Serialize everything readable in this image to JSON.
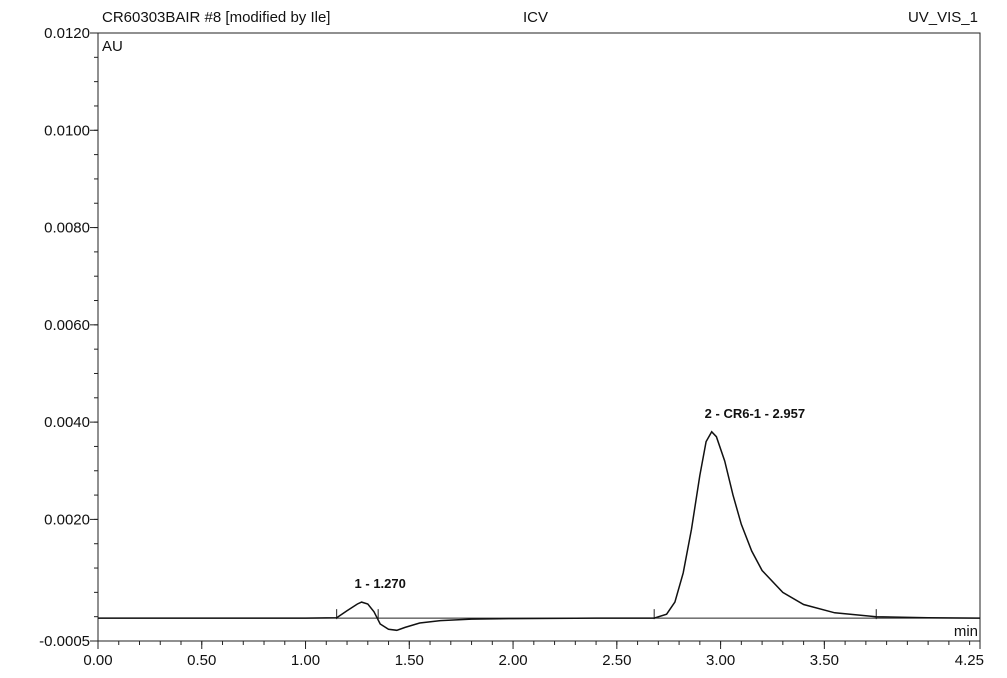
{
  "header": {
    "sample": "CR60303BAIR #8 [modified by Ile]",
    "method": "ICV",
    "channel": "UV_VIS_1"
  },
  "chart_data": {
    "type": "line",
    "title": "CR60303BAIR #8 [modified by Ile]",
    "xlabel": "min",
    "ylabel": "AU",
    "xlim": [
      0.0,
      4.25
    ],
    "ylim": [
      -0.0005,
      0.012
    ],
    "x_ticks": [
      "0.00",
      "0.50",
      "1.00",
      "1.50",
      "2.00",
      "2.50",
      "3.00",
      "3.50",
      "4.25"
    ],
    "y_ticks": [
      "-0.0005",
      "0.0020",
      "0.0040",
      "0.0060",
      "0.0080",
      "0.0100",
      "0.0120"
    ],
    "grid": false,
    "series": [
      {
        "x": [
          0.0,
          1.0,
          1.15,
          1.2,
          1.25,
          1.27,
          1.3,
          1.33,
          1.36,
          1.4,
          1.44,
          1.48,
          1.55,
          1.65,
          1.8,
          2.0,
          2.4,
          2.68,
          2.74,
          2.78,
          2.82,
          2.86,
          2.9,
          2.93,
          2.957,
          2.98,
          3.02,
          3.06,
          3.1,
          3.15,
          3.2,
          3.3,
          3.4,
          3.55,
          3.75,
          4.0,
          4.25
        ],
        "y": [
          -3e-05,
          -3e-05,
          -2e-05,
          0.00012,
          0.00026,
          0.0003,
          0.00026,
          0.0001,
          -0.00015,
          -0.00026,
          -0.00028,
          -0.00022,
          -0.00013,
          -8e-05,
          -5e-05,
          -4e-05,
          -3e-05,
          -3e-05,
          5e-05,
          0.0003,
          0.0009,
          0.0018,
          0.0029,
          0.0036,
          0.0038,
          0.0037,
          0.0032,
          0.0025,
          0.0019,
          0.00135,
          0.00095,
          0.0005,
          0.00025,
          8e-05,
          0.0,
          -2e-05,
          -3e-05
        ]
      }
    ],
    "peaks": [
      {
        "label": "1 - 1.270",
        "x": 1.27,
        "y": 0.0003
      },
      {
        "label": "2 - CR6-1 - 2.957",
        "x": 2.957,
        "y": 0.0038
      }
    ],
    "integration_marks": [
      1.15,
      1.35,
      2.68,
      3.75
    ]
  }
}
